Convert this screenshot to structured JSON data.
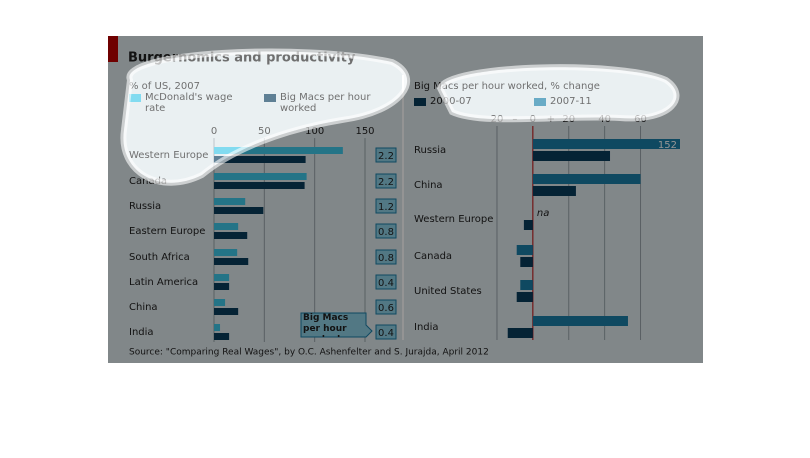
{
  "title": "Burgernomics and productivity",
  "source": "Source: \"Comparing Real Wages\", by O.C. Ashenfelter and S. Jurajda, April 2012",
  "chart_data": [
    {
      "type": "hbar",
      "subtitle": "% of US, 2007",
      "categories": [
        "Western Europe",
        "Canada",
        "Russia",
        "Eastern Europe",
        "South Africa",
        "Latin America",
        "China",
        "India"
      ],
      "series": [
        {
          "name": "McDonald's wage rate",
          "color": "#3fc8e8",
          "values": [
            128,
            92,
            31,
            24,
            23,
            15,
            11,
            6
          ]
        },
        {
          "name": "Big Macs per hour worked",
          "color": "#0a3d5c",
          "values": [
            91,
            90,
            49,
            33,
            34,
            15,
            24,
            15
          ]
        }
      ],
      "xlim": [
        0,
        150
      ],
      "xticks": [
        0,
        50,
        100,
        150
      ],
      "grid": true,
      "annotation": {
        "label": "Big Macs per hour worked",
        "values": [
          2.2,
          2.2,
          1.2,
          0.8,
          0.8,
          0.4,
          0.6,
          0.4
        ]
      }
    },
    {
      "type": "hbar",
      "subtitle": "Big Macs per hour worked, % change",
      "categories": [
        "Russia",
        "China",
        "Western Europe",
        "Canada",
        "United States",
        "India"
      ],
      "series": [
        {
          "name": "2000-07",
          "color": "#0a3d5c",
          "values": [
            43,
            24,
            -5,
            -7,
            -9,
            -14
          ]
        },
        {
          "name": "2007-11",
          "color": "#1a7ea8",
          "values": [
            152,
            60,
            null,
            -9,
            -7,
            53
          ],
          "value_labels": [
            "152",
            null,
            "na",
            null,
            null,
            null
          ]
        }
      ],
      "xlim": [
        -25,
        82
      ],
      "xticks": [
        {
          "value": -20,
          "label": "20"
        },
        0,
        20,
        40,
        60
      ],
      "grid": true,
      "sign_labels": [
        "–",
        "+"
      ]
    }
  ]
}
